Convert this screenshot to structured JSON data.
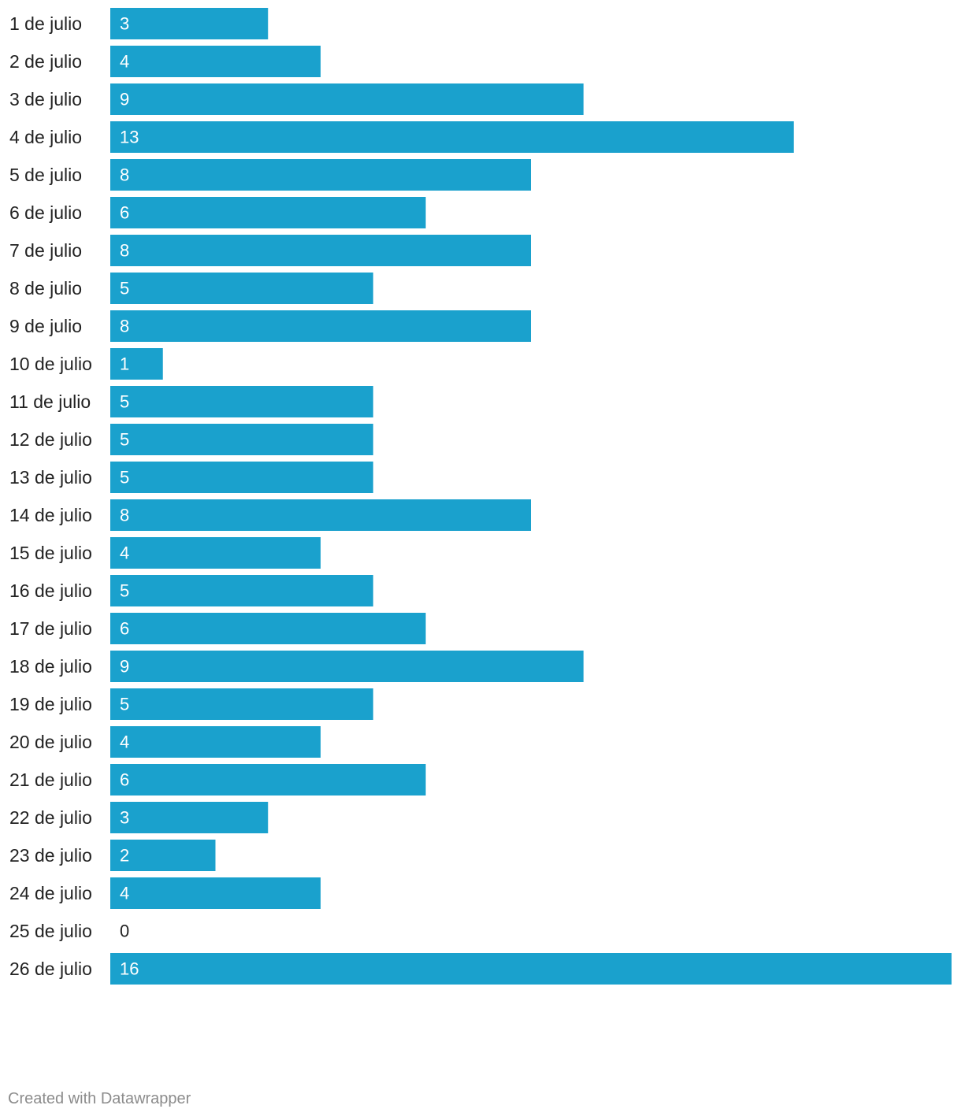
{
  "chart_data": {
    "type": "bar",
    "orientation": "horizontal",
    "categories": [
      "1 de julio",
      "2 de julio",
      "3 de julio",
      "4 de julio",
      "5 de julio",
      "6 de julio",
      "7 de julio",
      "8 de julio",
      "9 de julio",
      "10 de julio",
      "11 de julio",
      "12 de julio",
      "13 de julio",
      "14 de julio",
      "15 de julio",
      "16 de julio",
      "17 de julio",
      "18 de julio",
      "19 de julio",
      "20 de julio",
      "21 de julio",
      "22 de julio",
      "23 de julio",
      "24 de julio",
      "25 de julio",
      "26 de julio"
    ],
    "values": [
      3,
      4,
      9,
      13,
      8,
      6,
      8,
      5,
      8,
      1,
      5,
      5,
      5,
      8,
      4,
      5,
      6,
      9,
      5,
      4,
      6,
      3,
      2,
      4,
      0,
      16
    ],
    "xlim": [
      0,
      16
    ],
    "grid": false,
    "legend": "none",
    "colors": {
      "bar": "#1aa1cd",
      "label_inside": "#ffffff",
      "label_outside": "#222222"
    }
  },
  "footer": {
    "credit": "Created with Datawrapper"
  }
}
